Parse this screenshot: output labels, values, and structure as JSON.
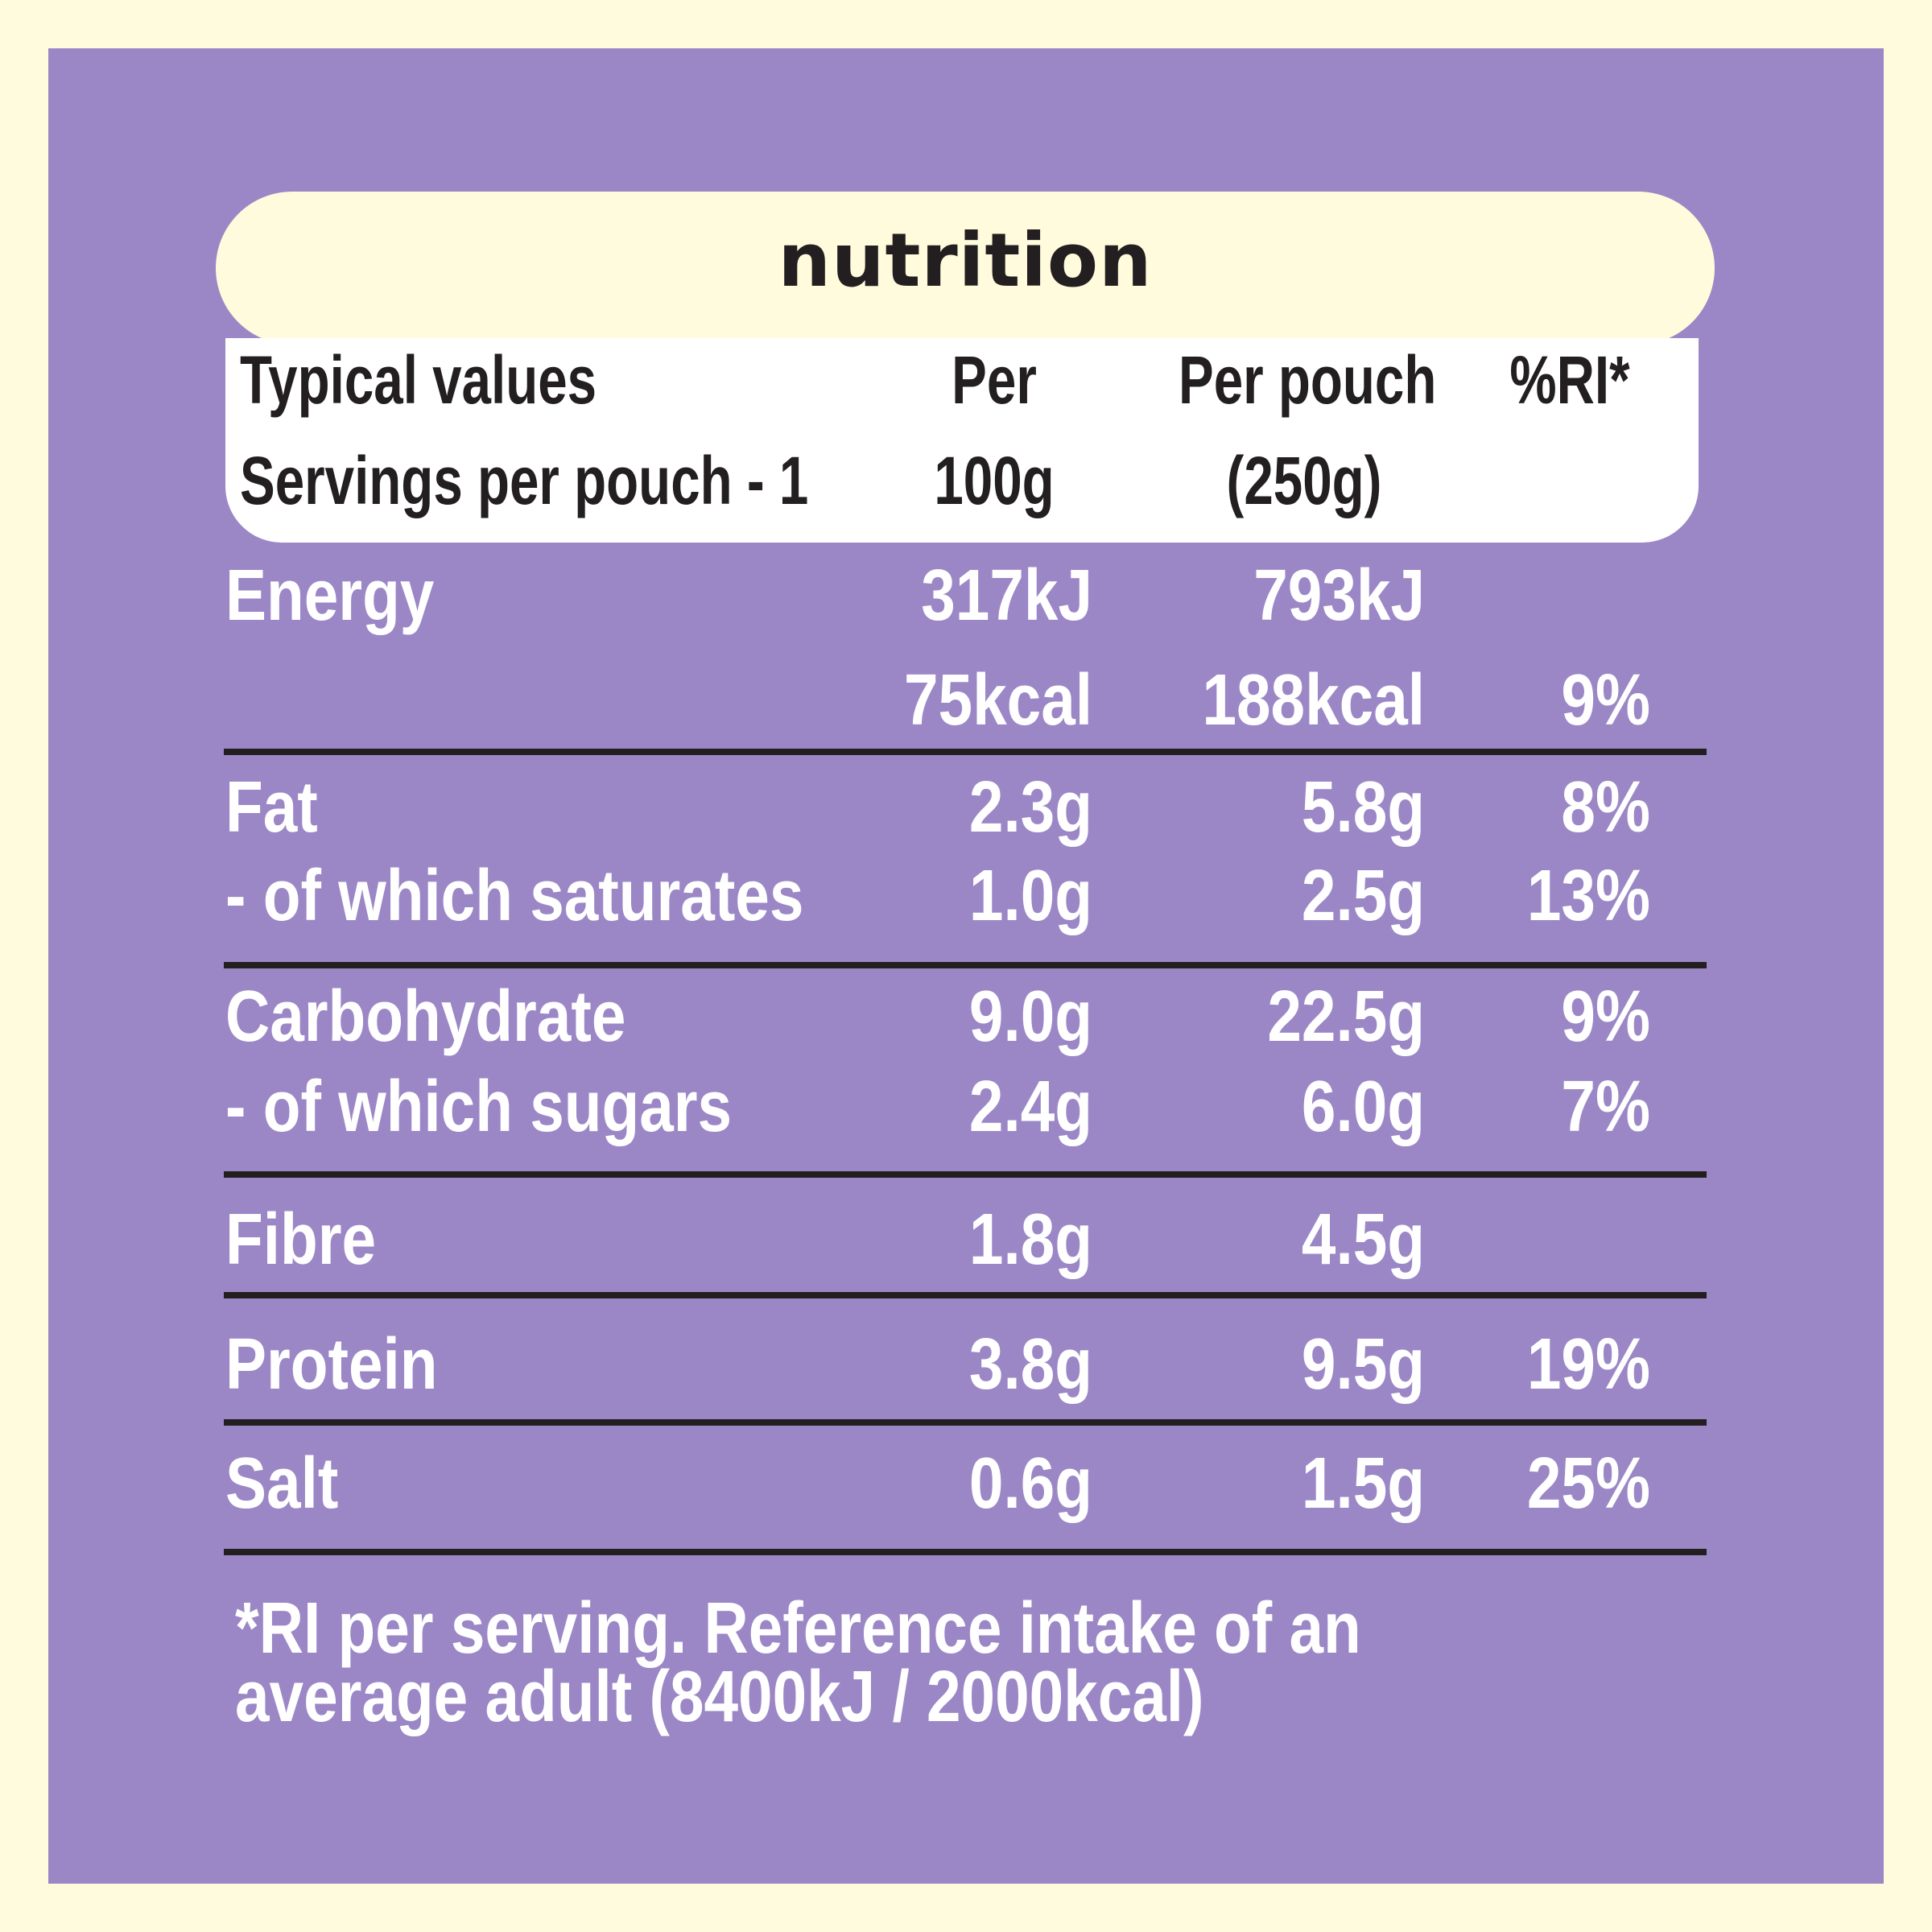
{
  "title": "nutrition",
  "header": {
    "col0_line1": "Typical values",
    "col0_line2": "Servings per pouch - 1",
    "col1_line1": "Per",
    "col1_line2": "100g",
    "col2_line1": "Per pouch",
    "col2_line2": "(250g)",
    "col3_line1": "%RI*"
  },
  "rows": [
    {
      "label": "Energy",
      "per100g": "317kJ",
      "perPouch": "793kJ",
      "ri": ""
    },
    {
      "label": "",
      "per100g": "75kcal",
      "perPouch": "188kcal",
      "ri": "9%"
    },
    {
      "label": "Fat",
      "per100g": "2.3g",
      "perPouch": "5.8g",
      "ri": "8%"
    },
    {
      "label": "- of which saturates",
      "per100g": "1.0g",
      "perPouch": "2.5g",
      "ri": "13%"
    },
    {
      "label": "Carbohydrate",
      "per100g": "9.0g",
      "perPouch": "22.5g",
      "ri": "9%"
    },
    {
      "label": "- of which sugars",
      "per100g": "2.4g",
      "perPouch": "6.0g",
      "ri": "7%"
    },
    {
      "label": "Fibre",
      "per100g": "1.8g",
      "perPouch": "4.5g",
      "ri": ""
    },
    {
      "label": "Protein",
      "per100g": "3.8g",
      "perPouch": "9.5g",
      "ri": "19%"
    },
    {
      "label": "Salt",
      "per100g": "0.6g",
      "perPouch": "1.5g",
      "ri": "25%"
    }
  ],
  "footnote": {
    "line1": "*RI per serving. Reference intake of an",
    "line2": "average adult (8400kJ / 2000kcal)"
  },
  "colors": {
    "background": "#fffbdc",
    "panel": "#9b87c6",
    "text_dark": "#231f20",
    "text_light": "#ffffff"
  }
}
